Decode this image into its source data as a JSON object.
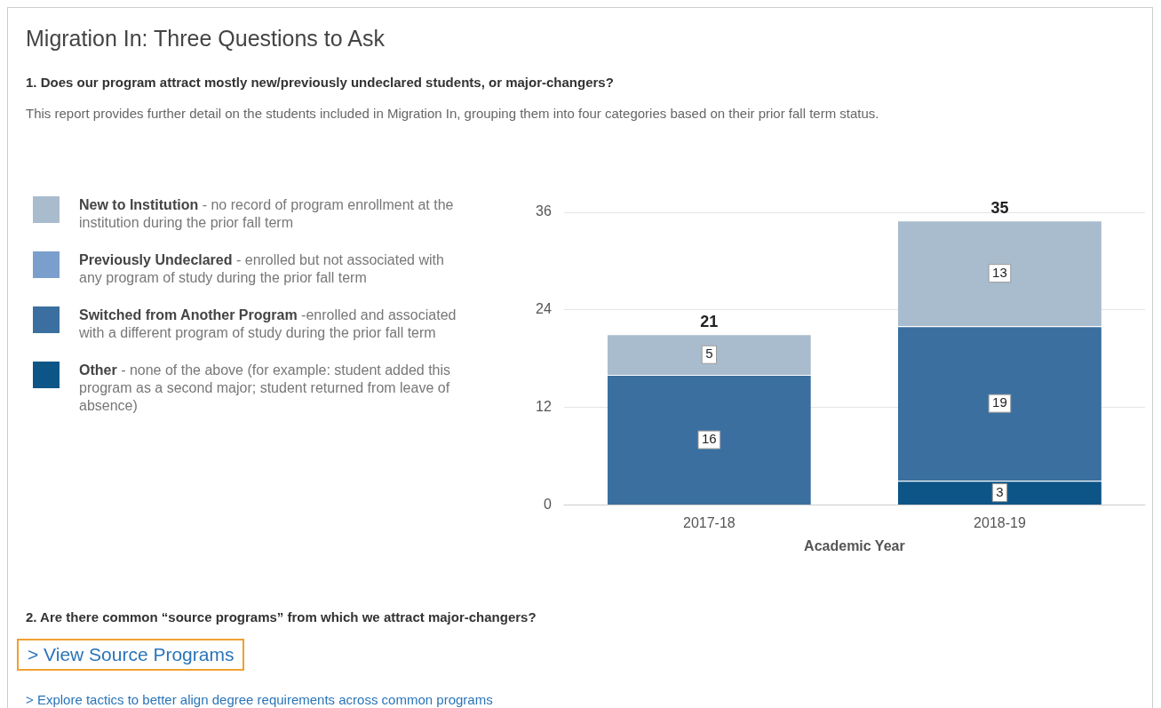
{
  "chart_data": {
    "type": "bar",
    "title": "Migration In: Three Questions to Ask",
    "subtitle": "1. Does our program attract mostly new/previously undeclared students, or major-changers?",
    "annotations": [
      "This report provides further detail on the students included in Migration In, grouping them into four categories based on their prior fall term status.",
      "- no record of program enrollment at the institution during the prior fall term",
      "- enrolled but not associated with any program of study during the prior fall term",
      "-enrolled and associated with a different program of study during the prior fall term",
      "- none of the above (for example: student added this program as a second major; student returned from leave of absence)",
      "2. Are there common “source programs” from which we attract major-changers?",
      "> View Source Programs",
      "> Explore tactics to better align degree requirements across common programs"
    ],
    "categories": [
      "2017-18",
      "2018-19"
    ],
    "xlabel": "Academic Year",
    "stacked": true,
    "series": [
      {
        "name": "Other",
        "color": "#0d5587",
        "values": [
          null,
          3
        ]
      },
      {
        "name": "Switched from Another Program",
        "color": "#3a6fa0",
        "values": [
          16,
          19
        ]
      },
      {
        "name": "Previously Undeclared",
        "color": "#7b9fcc",
        "values": [
          null,
          null
        ]
      },
      {
        "name": "New to Institution",
        "color": "#a9bccd",
        "values": [
          5,
          13
        ]
      }
    ],
    "totals": [
      "21",
      "35"
    ],
    "data_labels": true,
    "ylim": [
      0,
      36
    ],
    "yticks": [
      0,
      12,
      24,
      36
    ],
    "grid": "y",
    "legend": "left"
  }
}
